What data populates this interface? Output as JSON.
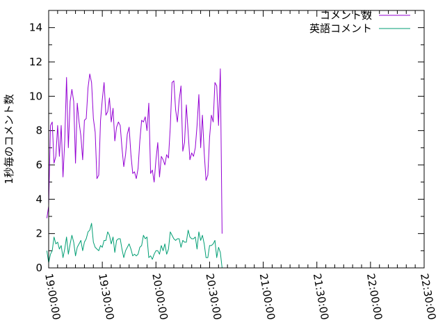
{
  "chart_data": {
    "type": "line",
    "title": "",
    "xlabel": "",
    "ylabel": "1秒毎のコメント数",
    "x_range": [
      "19:00:00",
      "22:30:00"
    ],
    "x_ticks": [
      "19:00:00",
      "19:30:00",
      "20:00:00",
      "20:30:00",
      "21:00:00",
      "21:30:00",
      "22:00:00",
      "22:30:00"
    ],
    "ylim": [
      0,
      15
    ],
    "y_ticks": [
      0,
      2,
      4,
      6,
      8,
      10,
      12,
      14
    ],
    "grid": false,
    "legend_position": "top-right",
    "x_start": "18:59:00",
    "x_step_seconds": 60,
    "series": [
      {
        "name": "コメント数",
        "color": "#9400d3",
        "values": [
          2.9,
          3.6,
          8.3,
          8.5,
          6.1,
          6.5,
          8.3,
          6.5,
          8.3,
          5.3,
          7.4,
          11.1,
          7.0,
          9.7,
          10.4,
          9.7,
          6.1,
          9.6,
          8.5,
          7.7,
          6.3,
          8.6,
          8.7,
          10.5,
          11.3,
          10.8,
          8.7,
          7.9,
          5.2,
          5.4,
          8.6,
          9.8,
          10.8,
          8.9,
          9.1,
          9.9,
          8.5,
          9.3,
          7.4,
          8.2,
          8.5,
          8.3,
          7.0,
          5.9,
          6.6,
          7.8,
          8.2,
          6.6,
          5.5,
          5.6,
          5.2,
          5.8,
          7.4,
          8.6,
          8.5,
          8.8,
          8.0,
          9.6,
          5.5,
          5.7,
          5.0,
          6.3,
          7.3,
          5.3,
          6.5,
          6.3,
          6.0,
          6.6,
          6.4,
          8.2,
          10.8,
          10.9,
          9.2,
          8.5,
          9.8,
          10.6,
          6.8,
          7.3,
          9.5,
          7.9,
          6.3,
          6.7,
          6.5,
          7.0,
          8.3,
          10.1,
          7.0,
          8.9,
          6.7,
          5.1,
          5.4,
          7.6,
          8.9,
          8.5,
          10.8,
          10.6,
          8.3,
          11.6,
          2.0
        ]
      },
      {
        "name": "英語コメント",
        "color": "#009e73",
        "values": [
          1.0,
          0.3,
          0.8,
          1.0,
          1.8,
          1.4,
          1.5,
          1.1,
          1.3,
          0.6,
          1.1,
          1.8,
          0.8,
          1.4,
          1.9,
          1.5,
          0.7,
          1.2,
          1.4,
          1.6,
          1.0,
          1.5,
          1.7,
          2.1,
          2.2,
          2.6,
          1.5,
          1.2,
          1.1,
          1.0,
          1.3,
          1.2,
          1.6,
          1.6,
          2.1,
          1.9,
          1.4,
          1.8,
          0.9,
          1.6,
          1.7,
          1.7,
          1.1,
          0.6,
          1.0,
          1.2,
          1.4,
          1.1,
          0.7,
          0.8,
          0.7,
          0.8,
          1.2,
          1.3,
          1.9,
          1.7,
          1.8,
          0.6,
          0.7,
          0.5,
          0.8,
          1.0,
          1.0,
          0.8,
          1.3,
          1.0,
          1.4,
          0.8,
          1.1,
          2.1,
          1.9,
          1.7,
          1.6,
          1.7,
          1.7,
          1.2,
          1.6,
          1.5,
          1.5,
          2.2,
          1.8,
          1.7,
          1.7,
          1.8,
          1.1,
          2.1,
          1.6,
          1.9,
          1.4,
          0.6,
          0.6,
          1.3,
          1.3,
          1.4,
          1.6,
          0.6,
          1.2,
          0.9,
          0.0
        ]
      }
    ]
  }
}
